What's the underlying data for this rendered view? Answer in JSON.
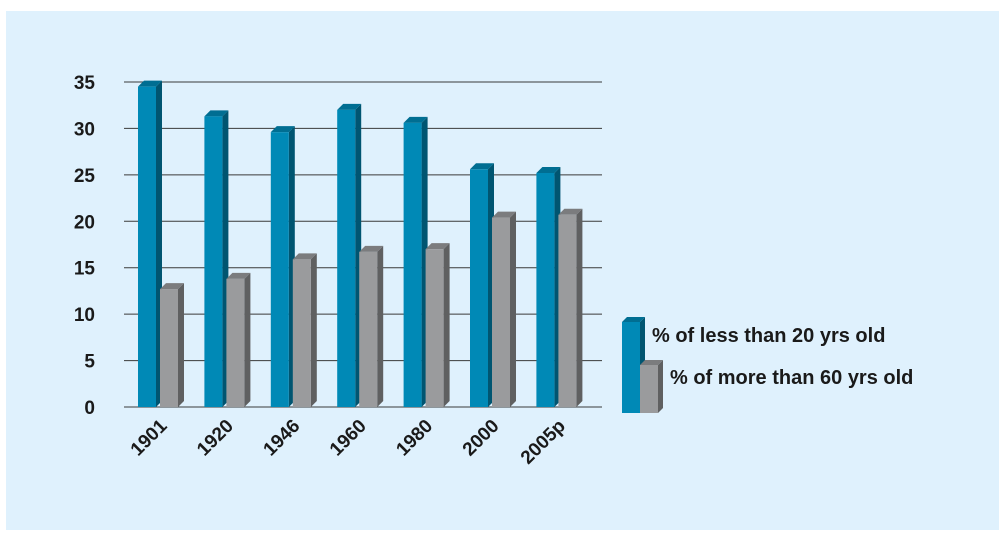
{
  "chart_data": {
    "type": "bar",
    "categories": [
      "1901",
      "1920",
      "1946",
      "1960",
      "1980",
      "2000",
      "2005p"
    ],
    "series": [
      {
        "name": "% of less than 20 yrs old",
        "values": [
          34.5,
          31.3,
          29.6,
          32.0,
          30.6,
          25.6,
          25.2
        ],
        "color": "#0089b6"
      },
      {
        "name": "% of more than 60 yrs old",
        "values": [
          12.7,
          13.8,
          15.9,
          16.7,
          17.0,
          20.4,
          20.7
        ],
        "color": "#9a9b9d"
      }
    ],
    "ylim": [
      0,
      35
    ],
    "yticks": [
      "0",
      "5",
      "10",
      "15",
      "20",
      "25",
      "30",
      "35"
    ],
    "xlabel": "",
    "ylabel": "",
    "title": "",
    "grid": true,
    "legend_position": "right",
    "colors": {
      "background": "#dff1fd",
      "gridline": "#3a3a3a"
    }
  }
}
